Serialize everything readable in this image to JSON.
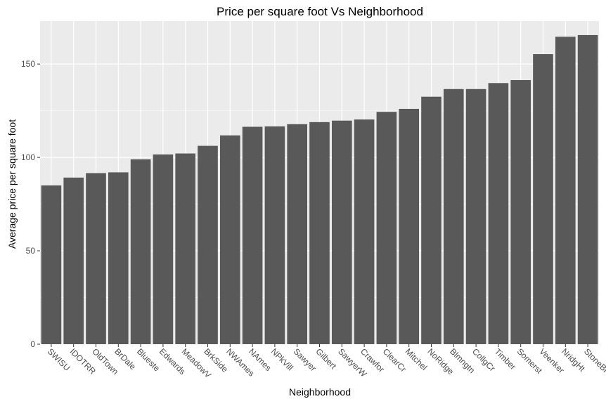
{
  "chart_data": {
    "type": "bar",
    "title": "Price per square foot Vs Neighborhood",
    "xlabel": "Neighborhood",
    "ylabel": "Average price per square foot",
    "categories": [
      "SWISU",
      "IDOTRR",
      "OldTown",
      "BrDale",
      "Blueste",
      "Edwards",
      "MeadowV",
      "BrkSide",
      "NWAmes",
      "NAmes",
      "NPkVill",
      "Sawyer",
      "Gilbert",
      "SawyerW",
      "Crawfor",
      "ClearCr",
      "Mitchel",
      "NoRidge",
      "Blmngtn",
      "CollgCr",
      "Timber",
      "Somerst",
      "Veenker",
      "NridgHt",
      "StoneBr"
    ],
    "values": [
      85.0,
      89.2,
      91.6,
      92.0,
      99.0,
      101.6,
      102.1,
      106.2,
      111.8,
      116.4,
      116.6,
      117.8,
      118.9,
      119.7,
      120.3,
      124.4,
      126.0,
      132.5,
      136.6,
      136.6,
      139.8,
      141.4,
      155.3,
      164.6,
      165.5
    ],
    "ylim": [
      0,
      173
    ],
    "yticks": [
      0,
      50,
      100,
      150
    ],
    "grid": true,
    "bar_color": "#595959",
    "panel_color": "#ebebeb",
    "grid_color": "#ffffff"
  }
}
